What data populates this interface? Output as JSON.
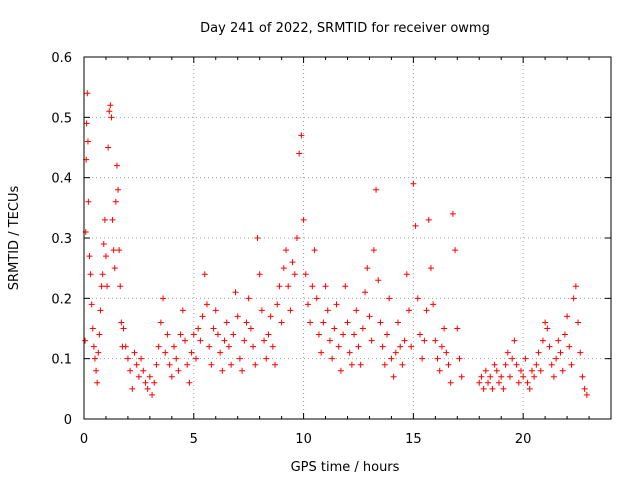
{
  "chart_data": {
    "type": "scatter",
    "title": "Day 241 of 2022, SRMTID for receiver owmg",
    "xlabel": "GPS time / hours",
    "ylabel": "SRMTID / TECUs",
    "xlim": [
      0,
      24
    ],
    "ylim": [
      0,
      0.6
    ],
    "x_ticks": [
      0,
      5,
      10,
      15,
      20
    ],
    "x_tick_labels": [
      "0",
      "5",
      "10",
      "15",
      "20"
    ],
    "y_ticks": [
      0,
      0.1,
      0.2,
      0.3,
      0.4,
      0.5,
      0.6
    ],
    "y_tick_labels": [
      "0",
      "0.1",
      "0.2",
      "0.3",
      "0.4",
      "0.5",
      "0.6"
    ],
    "grid": true,
    "marker": "plus",
    "color": "#ff0000",
    "series": [
      {
        "name": "SRMTID",
        "points": [
          [
            0.05,
            0.13
          ],
          [
            0.08,
            0.31
          ],
          [
            0.1,
            0.43
          ],
          [
            0.12,
            0.49
          ],
          [
            0.15,
            0.54
          ],
          [
            0.18,
            0.46
          ],
          [
            0.2,
            0.36
          ],
          [
            0.25,
            0.27
          ],
          [
            0.3,
            0.24
          ],
          [
            0.35,
            0.19
          ],
          [
            0.4,
            0.15
          ],
          [
            0.45,
            0.12
          ],
          [
            0.5,
            0.1
          ],
          [
            0.55,
            0.08
          ],
          [
            0.6,
            0.06
          ],
          [
            0.65,
            0.11
          ],
          [
            0.7,
            0.14
          ],
          [
            0.75,
            0.18
          ],
          [
            0.8,
            0.22
          ],
          [
            0.85,
            0.24
          ],
          [
            0.9,
            0.29
          ],
          [
            0.95,
            0.33
          ],
          [
            1.0,
            0.27
          ],
          [
            1.05,
            0.22
          ],
          [
            1.1,
            0.45
          ],
          [
            1.15,
            0.51
          ],
          [
            1.2,
            0.52
          ],
          [
            1.25,
            0.5
          ],
          [
            1.3,
            0.33
          ],
          [
            1.35,
            0.28
          ],
          [
            1.4,
            0.25
          ],
          [
            1.45,
            0.36
          ],
          [
            1.5,
            0.42
          ],
          [
            1.55,
            0.38
          ],
          [
            1.6,
            0.28
          ],
          [
            1.65,
            0.22
          ],
          [
            1.7,
            0.16
          ],
          [
            1.75,
            0.12
          ],
          [
            1.8,
            0.15
          ],
          [
            1.9,
            0.12
          ],
          [
            2.0,
            0.1
          ],
          [
            2.1,
            0.08
          ],
          [
            2.2,
            0.05
          ],
          [
            2.3,
            0.11
          ],
          [
            2.4,
            0.09
          ],
          [
            2.5,
            0.07
          ],
          [
            2.6,
            0.1
          ],
          [
            2.7,
            0.08
          ],
          [
            2.8,
            0.06
          ],
          [
            2.9,
            0.05
          ],
          [
            3.0,
            0.07
          ],
          [
            3.1,
            0.04
          ],
          [
            3.2,
            0.06
          ],
          [
            3.3,
            0.09
          ],
          [
            3.4,
            0.12
          ],
          [
            3.5,
            0.16
          ],
          [
            3.6,
            0.2
          ],
          [
            3.7,
            0.11
          ],
          [
            3.8,
            0.14
          ],
          [
            3.9,
            0.09
          ],
          [
            4.0,
            0.07
          ],
          [
            4.1,
            0.12
          ],
          [
            4.2,
            0.1
          ],
          [
            4.3,
            0.08
          ],
          [
            4.4,
            0.14
          ],
          [
            4.5,
            0.18
          ],
          [
            4.6,
            0.13
          ],
          [
            4.7,
            0.09
          ],
          [
            4.8,
            0.06
          ],
          [
            4.9,
            0.11
          ],
          [
            5.0,
            0.14
          ],
          [
            5.1,
            0.1
          ],
          [
            5.2,
            0.15
          ],
          [
            5.3,
            0.13
          ],
          [
            5.4,
            0.17
          ],
          [
            5.5,
            0.24
          ],
          [
            5.6,
            0.19
          ],
          [
            5.7,
            0.12
          ],
          [
            5.8,
            0.09
          ],
          [
            5.9,
            0.15
          ],
          [
            6.0,
            0.18
          ],
          [
            6.1,
            0.14
          ],
          [
            6.2,
            0.11
          ],
          [
            6.3,
            0.08
          ],
          [
            6.4,
            0.13
          ],
          [
            6.5,
            0.16
          ],
          [
            6.6,
            0.12
          ],
          [
            6.7,
            0.09
          ],
          [
            6.8,
            0.14
          ],
          [
            6.9,
            0.21
          ],
          [
            7.0,
            0.17
          ],
          [
            7.1,
            0.1
          ],
          [
            7.2,
            0.08
          ],
          [
            7.3,
            0.13
          ],
          [
            7.4,
            0.16
          ],
          [
            7.5,
            0.2
          ],
          [
            7.6,
            0.15
          ],
          [
            7.7,
            0.12
          ],
          [
            7.8,
            0.09
          ],
          [
            7.9,
            0.3
          ],
          [
            8.0,
            0.24
          ],
          [
            8.1,
            0.18
          ],
          [
            8.2,
            0.13
          ],
          [
            8.3,
            0.1
          ],
          [
            8.4,
            0.14
          ],
          [
            8.5,
            0.17
          ],
          [
            8.6,
            0.12
          ],
          [
            8.7,
            0.09
          ],
          [
            8.8,
            0.19
          ],
          [
            8.9,
            0.22
          ],
          [
            9.0,
            0.16
          ],
          [
            9.1,
            0.25
          ],
          [
            9.2,
            0.28
          ],
          [
            9.3,
            0.22
          ],
          [
            9.4,
            0.18
          ],
          [
            9.5,
            0.26
          ],
          [
            9.6,
            0.24
          ],
          [
            9.7,
            0.3
          ],
          [
            9.8,
            0.44
          ],
          [
            9.9,
            0.47
          ],
          [
            10.0,
            0.33
          ],
          [
            10.1,
            0.24
          ],
          [
            10.2,
            0.19
          ],
          [
            10.3,
            0.16
          ],
          [
            10.4,
            0.22
          ],
          [
            10.5,
            0.28
          ],
          [
            10.6,
            0.2
          ],
          [
            10.7,
            0.14
          ],
          [
            10.8,
            0.11
          ],
          [
            10.9,
            0.16
          ],
          [
            11.0,
            0.22
          ],
          [
            11.1,
            0.18
          ],
          [
            11.2,
            0.13
          ],
          [
            11.3,
            0.1
          ],
          [
            11.4,
            0.15
          ],
          [
            11.5,
            0.19
          ],
          [
            11.6,
            0.12
          ],
          [
            11.7,
            0.08
          ],
          [
            11.8,
            0.14
          ],
          [
            11.9,
            0.22
          ],
          [
            12.0,
            0.16
          ],
          [
            12.1,
            0.11
          ],
          [
            12.2,
            0.09
          ],
          [
            12.3,
            0.14
          ],
          [
            12.4,
            0.18
          ],
          [
            12.5,
            0.12
          ],
          [
            12.6,
            0.09
          ],
          [
            12.7,
            0.15
          ],
          [
            12.8,
            0.21
          ],
          [
            12.9,
            0.25
          ],
          [
            13.0,
            0.17
          ],
          [
            13.1,
            0.13
          ],
          [
            13.2,
            0.28
          ],
          [
            13.3,
            0.38
          ],
          [
            13.4,
            0.23
          ],
          [
            13.5,
            0.16
          ],
          [
            13.6,
            0.12
          ],
          [
            13.7,
            0.09
          ],
          [
            13.8,
            0.14
          ],
          [
            13.9,
            0.2
          ],
          [
            14.0,
            0.1
          ],
          [
            14.1,
            0.07
          ],
          [
            14.2,
            0.11
          ],
          [
            14.3,
            0.16
          ],
          [
            14.4,
            0.12
          ],
          [
            14.5,
            0.09
          ],
          [
            14.6,
            0.13
          ],
          [
            14.7,
            0.24
          ],
          [
            14.8,
            0.18
          ],
          [
            14.9,
            0.12
          ],
          [
            15.0,
            0.39
          ],
          [
            15.1,
            0.32
          ],
          [
            15.2,
            0.2
          ],
          [
            15.3,
            0.14
          ],
          [
            15.4,
            0.1
          ],
          [
            15.5,
            0.13
          ],
          [
            15.6,
            0.18
          ],
          [
            15.7,
            0.33
          ],
          [
            15.8,
            0.25
          ],
          [
            15.9,
            0.19
          ],
          [
            16.0,
            0.13
          ],
          [
            16.1,
            0.1
          ],
          [
            16.2,
            0.08
          ],
          [
            16.3,
            0.12
          ],
          [
            16.4,
            0.15
          ],
          [
            16.5,
            0.11
          ],
          [
            16.6,
            0.09
          ],
          [
            16.7,
            0.06
          ],
          [
            16.8,
            0.34
          ],
          [
            16.9,
            0.28
          ],
          [
            17.0,
            0.15
          ],
          [
            17.1,
            0.1
          ],
          [
            17.2,
            0.07
          ],
          [
            18.0,
            0.06
          ],
          [
            18.1,
            0.07
          ],
          [
            18.2,
            0.05
          ],
          [
            18.3,
            0.08
          ],
          [
            18.4,
            0.06
          ],
          [
            18.5,
            0.07
          ],
          [
            18.6,
            0.05
          ],
          [
            18.7,
            0.09
          ],
          [
            18.8,
            0.08
          ],
          [
            18.9,
            0.06
          ],
          [
            19.0,
            0.07
          ],
          [
            19.1,
            0.05
          ],
          [
            19.2,
            0.09
          ],
          [
            19.3,
            0.11
          ],
          [
            19.4,
            0.07
          ],
          [
            19.5,
            0.1
          ],
          [
            19.6,
            0.13
          ],
          [
            19.7,
            0.09
          ],
          [
            19.8,
            0.06
          ],
          [
            19.9,
            0.08
          ],
          [
            20.0,
            0.07
          ],
          [
            20.1,
            0.1
          ],
          [
            20.2,
            0.06
          ],
          [
            20.3,
            0.05
          ],
          [
            20.4,
            0.08
          ],
          [
            20.5,
            0.07
          ],
          [
            20.6,
            0.09
          ],
          [
            20.7,
            0.11
          ],
          [
            20.8,
            0.08
          ],
          [
            20.9,
            0.13
          ],
          [
            21.0,
            0.16
          ],
          [
            21.1,
            0.15
          ],
          [
            21.2,
            0.12
          ],
          [
            21.3,
            0.09
          ],
          [
            21.4,
            0.07
          ],
          [
            21.5,
            0.1
          ],
          [
            21.6,
            0.13
          ],
          [
            21.7,
            0.11
          ],
          [
            21.8,
            0.08
          ],
          [
            21.9,
            0.14
          ],
          [
            22.0,
            0.17
          ],
          [
            22.1,
            0.12
          ],
          [
            22.2,
            0.09
          ],
          [
            22.3,
            0.2
          ],
          [
            22.4,
            0.22
          ],
          [
            22.5,
            0.16
          ],
          [
            22.6,
            0.11
          ],
          [
            22.7,
            0.07
          ],
          [
            22.8,
            0.05
          ],
          [
            22.9,
            0.04
          ]
        ]
      }
    ]
  }
}
